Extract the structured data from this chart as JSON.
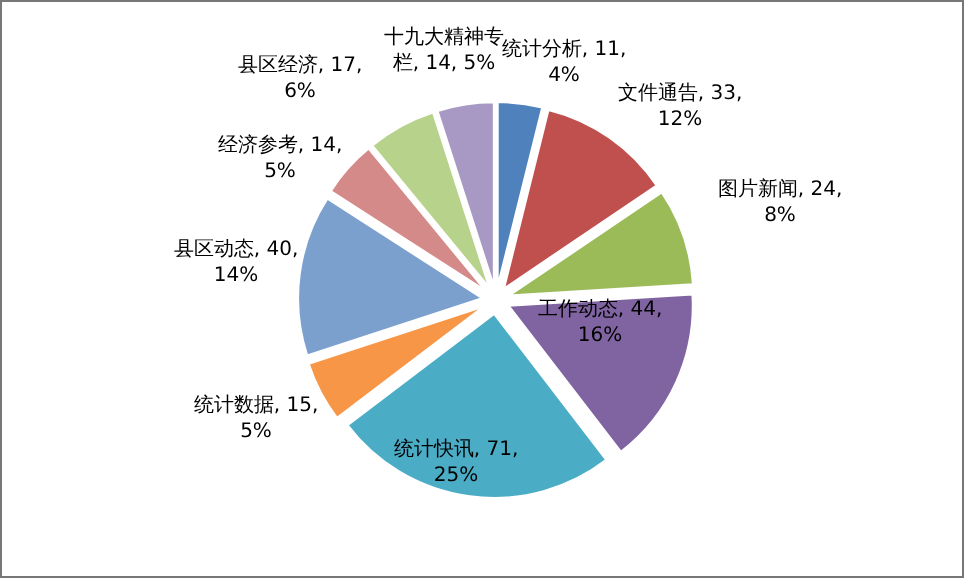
{
  "chart_data": {
    "type": "pie",
    "categories": [
      "统计分析",
      "文件通告",
      "图片新闻",
      "工作动态",
      "统计快讯",
      "统计数据",
      "县区动态",
      "经济参考",
      "县区经济",
      "十九大精神专栏"
    ],
    "values": [
      11,
      33,
      24,
      44,
      71,
      15,
      40,
      14,
      17,
      14
    ],
    "value_labels": [
      "11, 4%",
      "33, 12%",
      "24, 8%",
      "44, 16%",
      "71, 25%",
      "15, 5%",
      "40, 14%",
      "14, 5%",
      "17, 6%",
      "14, 5%"
    ],
    "colors": [
      "#4f81bd",
      "#c0504d",
      "#9bbb59",
      "#8064a2",
      "#4bacc6",
      "#f79646",
      "#7ba0cd",
      "#d48a88",
      "#b7d28b",
      "#a899c4"
    ],
    "data_labels": true,
    "legend": false
  }
}
